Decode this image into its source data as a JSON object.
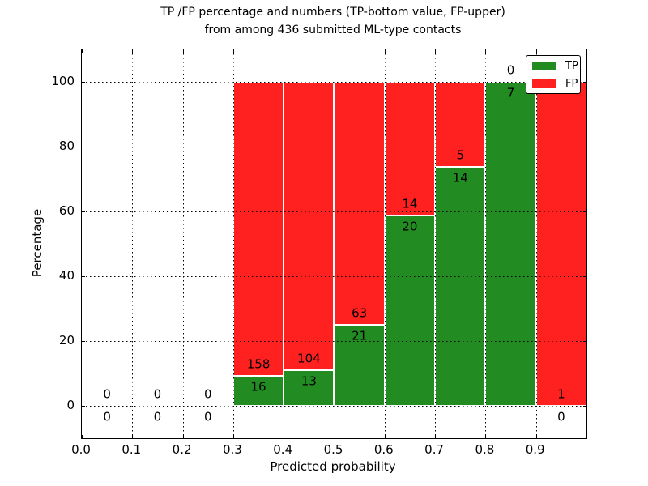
{
  "title": {
    "line1": "TP /FP percentage and numbers (TP-bottom value, FP-upper)",
    "line2": "from among 436 submitted ML-type contacts"
  },
  "axes": {
    "xlabel": "Predicted probability",
    "ylabel": "Percentage",
    "xtick_labels": [
      "0.0",
      "0.1",
      "0.2",
      "0.3",
      "0.4",
      "0.5",
      "0.6",
      "0.7",
      "0.8",
      "0.9"
    ],
    "ytick_labels": [
      "0",
      "20",
      "40",
      "60",
      "80",
      "100"
    ]
  },
  "legend": {
    "items": [
      {
        "label": "TP",
        "color_key": "tp"
      },
      {
        "label": "FP",
        "color_key": "fp"
      }
    ]
  },
  "colors": {
    "tp": "#228B22",
    "fp": "#FF2020",
    "grid": "#000000",
    "background": "#FFFFFF"
  },
  "chart_data": {
    "type": "bar",
    "stacked": true,
    "orientation": "vertical",
    "title": "TP /FP percentage and numbers (TP-bottom value, FP-upper)\nfrom among 436 submitted ML-type contacts",
    "xlabel": "Predicted probability",
    "ylabel": "Percentage",
    "xlim": [
      0.0,
      1.0
    ],
    "ylim": [
      -10,
      110
    ],
    "xticks": [
      0.0,
      0.1,
      0.2,
      0.3,
      0.4,
      0.5,
      0.6,
      0.7,
      0.8,
      0.9
    ],
    "yticks": [
      0,
      20,
      40,
      60,
      80,
      100
    ],
    "grid": "dotted",
    "legend_position": "upper right",
    "total_contacts": 436,
    "bin_width": 0.1,
    "categories": [
      "0.0-0.1",
      "0.1-0.2",
      "0.2-0.3",
      "0.3-0.4",
      "0.4-0.5",
      "0.5-0.6",
      "0.6-0.7",
      "0.7-0.8",
      "0.8-0.9",
      "0.9-1.0"
    ],
    "series": [
      {
        "name": "TP",
        "color_key": "tp",
        "counts": [
          0,
          0,
          0,
          16,
          13,
          21,
          20,
          14,
          7,
          0
        ],
        "pct": [
          0,
          0,
          0,
          9.2,
          11.11,
          25.0,
          58.82,
          73.68,
          100.0,
          0.0
        ]
      },
      {
        "name": "FP",
        "color_key": "fp",
        "counts": [
          0,
          0,
          0,
          158,
          104,
          63,
          14,
          5,
          0,
          1
        ],
        "pct": [
          0,
          0,
          0,
          90.8,
          88.89,
          75.0,
          41.18,
          26.32,
          0.0,
          100.0
        ]
      }
    ],
    "annotation_rule": "FP count printed above TP/FP boundary, TP count printed below"
  }
}
